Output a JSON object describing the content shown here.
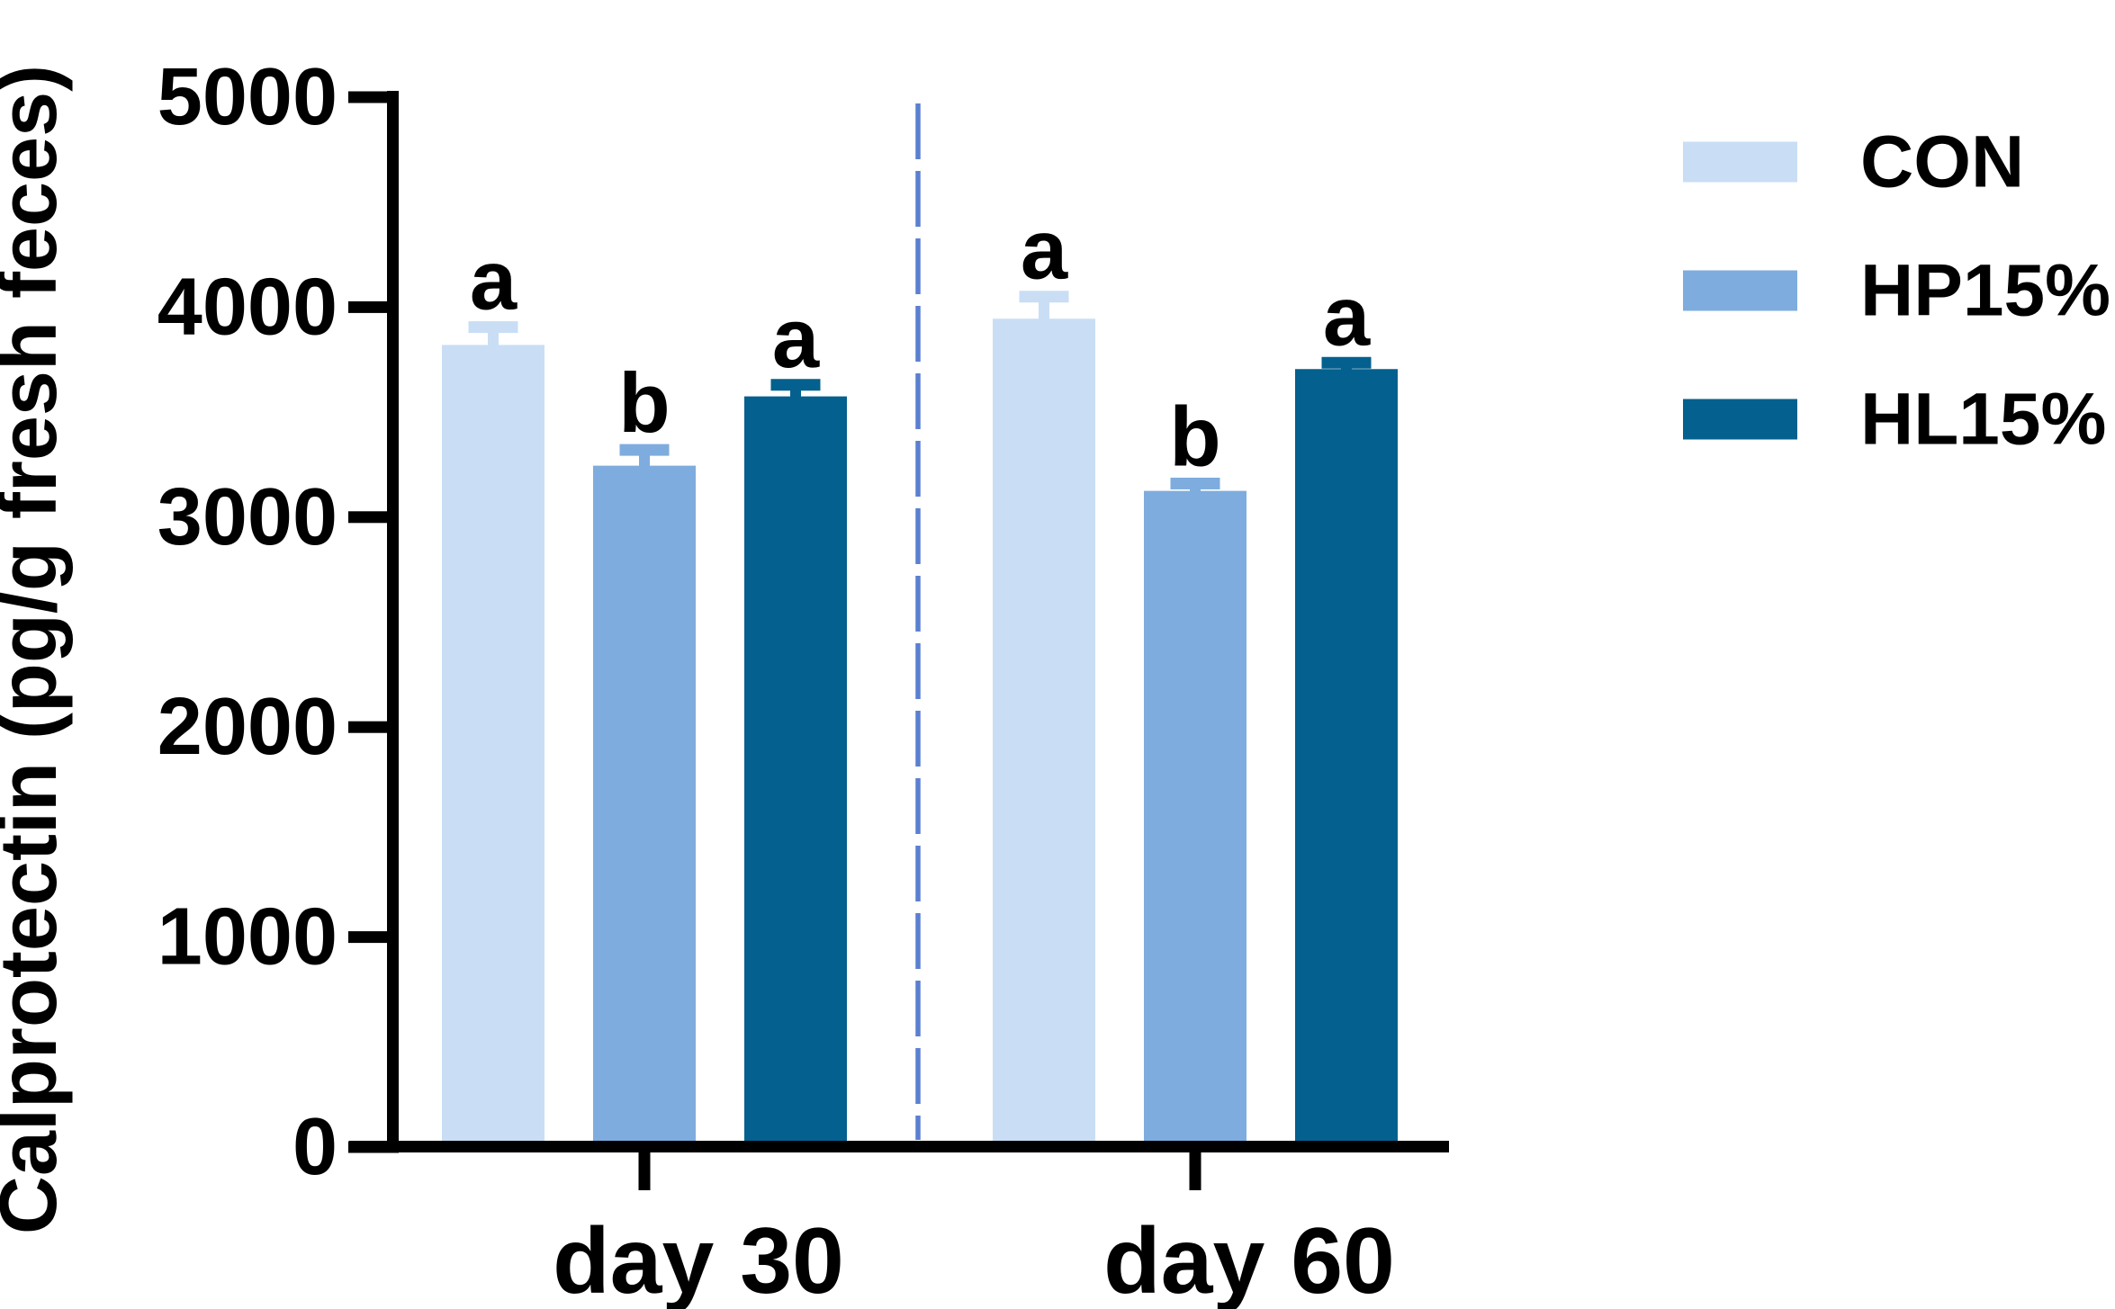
{
  "chart_data": {
    "type": "bar",
    "title": "",
    "ylabel": "Calprotectin (pg/g fresh feces)",
    "xlabel": "",
    "categories": [
      "day 30",
      "day 60"
    ],
    "series": [
      {
        "name": "CON",
        "color": "#c9def5",
        "values": [
          3820,
          3945
        ],
        "sem": [
          85,
          105
        ],
        "sig_letters": [
          "a",
          "a"
        ]
      },
      {
        "name": "HP15%",
        "color": "#7eacde",
        "values": [
          3245,
          3125
        ],
        "sem": [
          75,
          35
        ],
        "sig_letters": [
          "b",
          "b"
        ]
      },
      {
        "name": "HL15%",
        "color": "#04608e",
        "values": [
          3575,
          3705
        ],
        "sem": [
          55,
          30
        ],
        "sig_letters": [
          "a",
          "a"
        ]
      }
    ],
    "ylim": [
      0,
      5000
    ],
    "yticks": [
      0,
      1000,
      2000,
      3000,
      4000,
      5000
    ],
    "grid": false,
    "error_bars": "SEM, upper only, caps colored like bars",
    "significance_letters_by_group": [
      [
        "a",
        "b",
        "a"
      ],
      [
        "a",
        "b",
        "a"
      ]
    ],
    "legend_position": "right",
    "separator": {
      "style": "dashed",
      "color": "#5b80d1",
      "location": "between day 30 and day 60 groups"
    },
    "axis_color": "#000000"
  }
}
